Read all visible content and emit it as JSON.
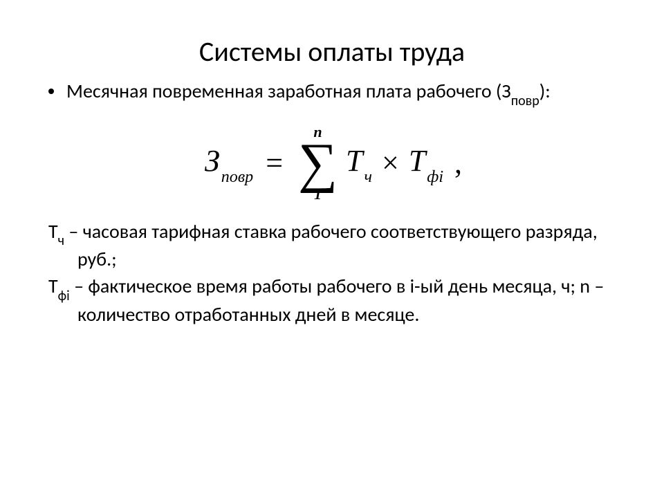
{
  "title": "Системы оплаты труда",
  "bullet": {
    "line": "Месячная повременная заработная плата рабочего (З",
    "sub": "повр",
    "tail": "):"
  },
  "formula": {
    "z": "З",
    "z_sub": "повр",
    "eq": "=",
    "sum_upper": "n",
    "sum_lower": "1",
    "t1": "Т",
    "t1_sub": "ч",
    "mult": "×",
    "t2": "Т",
    "t2_sub": "фi",
    "comma": ","
  },
  "defs": {
    "d1_sym": "Т",
    "d1_sub": "ч",
    "d1_text": " – часовая тарифная ставка рабочего соответствующего разряда, руб.;",
    "d2_sym": "Т",
    "d2_sub": "фi",
    "d2_text": " – фактическое время работы рабочего в i-ый день месяца, ч; n – количество отработанных дней в месяце."
  }
}
